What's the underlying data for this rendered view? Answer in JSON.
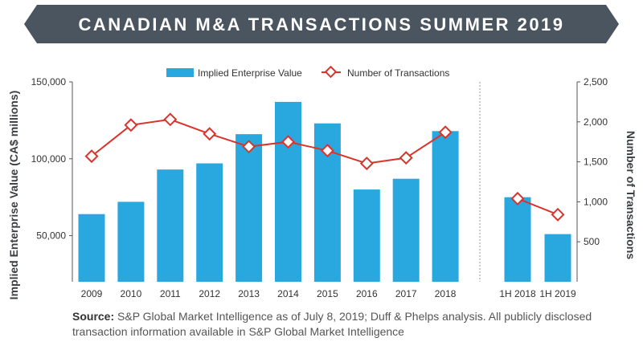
{
  "colors": {
    "banner": "#4a5560",
    "bar": "#29a8e0",
    "line": "#d9342b",
    "marker_fill": "#ffffff",
    "divider": "#999999"
  },
  "header": {
    "title": "CANADIAN M&A TRANSACTIONS SUMMER 2019"
  },
  "chart_data": {
    "type": "bar+line",
    "categories": [
      "2009",
      "2010",
      "2011",
      "2012",
      "2013",
      "2014",
      "2015",
      "2016",
      "2017",
      "2018",
      "1H 2018",
      "1H 2019"
    ],
    "series": [
      {
        "name": "Implied Enterprise Value",
        "type": "bar",
        "axis": "left",
        "values": [
          64000,
          72000,
          93000,
          97000,
          116000,
          137000,
          123000,
          80000,
          87000,
          118000,
          75000,
          51000
        ]
      },
      {
        "name": "Number of Transactions",
        "type": "line",
        "axis": "right",
        "values": [
          1570,
          1960,
          2030,
          1850,
          1690,
          1750,
          1640,
          1480,
          1550,
          1870,
          1040,
          840
        ]
      }
    ],
    "ylabel": "Implied Enterprise Value (CA$ millions)",
    "ylabel_right": "Number of Transactions",
    "ylim": [
      20000,
      150000
    ],
    "ylim_right": [
      0,
      2500
    ],
    "yticks": [
      "50,000",
      "100,000",
      "150,000"
    ],
    "yticks_values": [
      50000,
      100000,
      150000
    ],
    "yticks_right": [
      "500",
      "1,000",
      "1,500",
      "2,000",
      "2,500"
    ],
    "yticks_right_values": [
      500,
      1000,
      1500,
      2000,
      2500
    ],
    "legend_position": "top-center",
    "grid": false
  },
  "source": {
    "label": "Source:",
    "text": " S&P Global Market Intelligence as of July 8, 2019; Duff & Phelps analysis. All publicly disclosed transaction information available in S&P Global Market Intelligence"
  }
}
